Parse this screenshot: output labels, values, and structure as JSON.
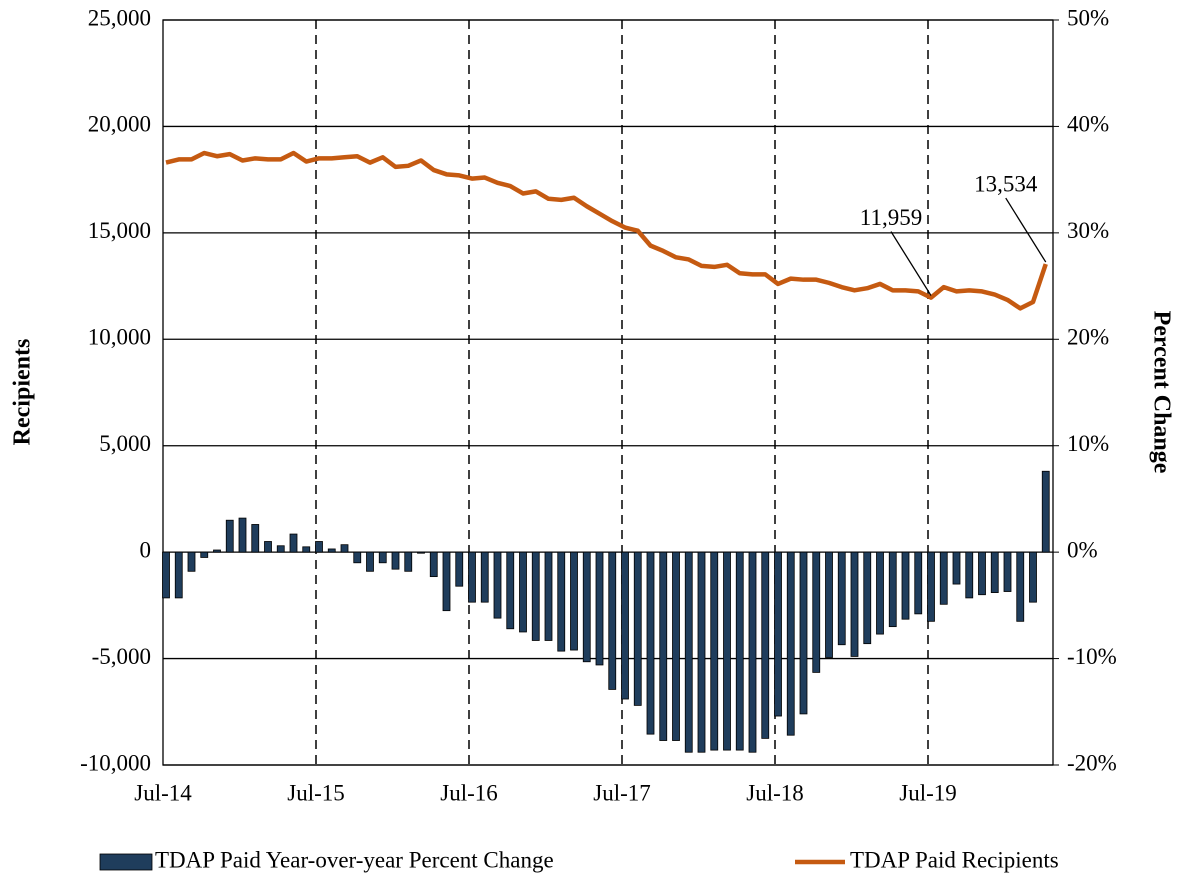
{
  "chart_data": {
    "type": "bar_line",
    "categories": [
      "Jul-14",
      null,
      null,
      null,
      null,
      null,
      null,
      null,
      null,
      null,
      null,
      null,
      "Jul-15",
      null,
      null,
      null,
      null,
      null,
      null,
      null,
      null,
      null,
      null,
      null,
      "Jul-16",
      null,
      null,
      null,
      null,
      null,
      null,
      null,
      null,
      null,
      null,
      null,
      "Jul-17",
      null,
      null,
      null,
      null,
      null,
      null,
      null,
      null,
      null,
      null,
      null,
      "Jul-18",
      null,
      null,
      null,
      null,
      null,
      null,
      null,
      null,
      null,
      null,
      null,
      "Jul-19",
      null,
      null,
      null,
      null,
      null,
      null,
      null,
      null,
      null
    ],
    "y_label": "Recipients",
    "y2_label": "Percent Change",
    "ylim": [
      -10000,
      25000
    ],
    "yticks": [
      {
        "value": -10000,
        "label": "-10,000"
      },
      {
        "value": -5000,
        "label": "-5,000"
      },
      0,
      {
        "value": 5000,
        "label": "5,000"
      },
      {
        "value": 10000,
        "label": "10,000"
      },
      {
        "value": 15000,
        "label": "15,000"
      },
      {
        "value": 20000,
        "label": "20,000"
      },
      {
        "value": 25000,
        "label": "25,000"
      }
    ],
    "y2lim": [
      -20,
      50
    ],
    "y2ticks": [
      {
        "value": -20,
        "label": "-20%"
      },
      {
        "value": -10,
        "label": "-10%"
      },
      {
        "value": 0,
        "label": "0%"
      },
      {
        "value": 10,
        "label": "10%"
      },
      {
        "value": 20,
        "label": "20%"
      },
      {
        "value": 30,
        "label": "30%"
      },
      {
        "value": 40,
        "label": "40%"
      },
      {
        "value": 50,
        "label": "50%"
      }
    ],
    "grid": true,
    "series": [
      {
        "name": "TDAP Paid Year-over-year Percent Change",
        "type": "bar",
        "axis": "y2",
        "color": "#1f3d5c",
        "values": [
          -4.3,
          -4.3,
          -1.8,
          -0.5,
          0.2,
          3.0,
          3.2,
          2.6,
          1.0,
          0.6,
          1.7,
          0.5,
          1.0,
          0.3,
          0.7,
          -1.0,
          -1.8,
          -1.0,
          -1.6,
          -1.8,
          -0.1,
          -2.3,
          -5.5,
          -3.2,
          -4.7,
          -4.7,
          -6.2,
          -7.2,
          -7.5,
          -8.3,
          -8.3,
          -9.3,
          -9.2,
          -10.3,
          -10.6,
          -12.9,
          -13.8,
          -14.4,
          -17.1,
          -17.7,
          -17.7,
          -18.8,
          -18.8,
          -18.6,
          -18.6,
          -18.6,
          -18.8,
          -17.5,
          -15.4,
          -17.2,
          -15.2,
          -11.3,
          -9.9,
          -8.7,
          -9.8,
          -8.6,
          -7.7,
          -7.0,
          -6.3,
          -5.8,
          -6.5,
          -4.9,
          -3.0,
          -4.3,
          -4.0,
          -3.8,
          -3.7,
          -6.5,
          -4.7,
          7.6
        ]
      },
      {
        "name": "TDAP Paid Recipients",
        "type": "line",
        "color": "#c55a11",
        "values": [
          18300,
          18450,
          18450,
          18750,
          18600,
          18700,
          18400,
          18500,
          18450,
          18450,
          18750,
          18350,
          18500,
          18500,
          18550,
          18600,
          18300,
          18550,
          18100,
          18150,
          18400,
          17950,
          17750,
          17700,
          17550,
          17600,
          17350,
          17200,
          16850,
          16950,
          16600,
          16550,
          16650,
          16250,
          15900,
          15550,
          15250,
          15100,
          14400,
          14150,
          13850,
          13750,
          13450,
          13400,
          13500,
          13100,
          13050,
          13050,
          12600,
          12850,
          12800,
          12800,
          12650,
          12450,
          12300,
          12400,
          12600,
          12300,
          12300,
          12250,
          11959,
          12450,
          12250,
          12300,
          12250,
          12100,
          11850,
          11450,
          11750,
          13534
        ],
        "value_labels": [
          null,
          null,
          null,
          null,
          null,
          null,
          null,
          null,
          null,
          null,
          null,
          null,
          null,
          null,
          null,
          null,
          null,
          null,
          null,
          null,
          null,
          null,
          null,
          null,
          null,
          null,
          null,
          null,
          null,
          null,
          null,
          null,
          null,
          null,
          null,
          null,
          null,
          null,
          null,
          null,
          null,
          null,
          null,
          null,
          null,
          null,
          null,
          null,
          null,
          null,
          null,
          null,
          null,
          null,
          null,
          null,
          null,
          null,
          null,
          null,
          "11,959",
          null,
          null,
          null,
          null,
          null,
          null,
          null,
          null,
          "13,534"
        ]
      }
    ]
  }
}
